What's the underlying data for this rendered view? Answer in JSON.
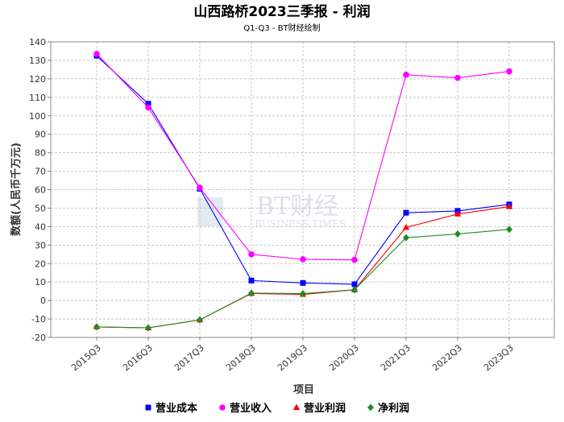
{
  "chart_data": {
    "type": "line",
    "title": "山西路桥2023三季报 - 利润",
    "subtitle": "Q1-Q3 - BT财经绘制",
    "xlabel": "项目",
    "ylabel": "数额(人民币千万元)",
    "ylim": [
      -20,
      140
    ],
    "ytick_step": 10,
    "grid": true,
    "legend_position": "bottom",
    "categories": [
      "2015Q3",
      "2016Q3",
      "2017Q3",
      "2018Q3",
      "2019Q3",
      "2020Q3",
      "2021Q3",
      "2022Q3",
      "2023Q3"
    ],
    "series": [
      {
        "name": "营业成本",
        "color": "#0000ff",
        "marker": "square",
        "values": [
          132.5,
          106.5,
          60.5,
          10.8,
          9.5,
          8.8,
          47.5,
          48.5,
          52.0
        ]
      },
      {
        "name": "营业收入",
        "color": "#ff00ff",
        "marker": "circle",
        "values": [
          133.5,
          104.5,
          61.0,
          25.0,
          22.3,
          22.0,
          122.2,
          120.5,
          124.0
        ]
      },
      {
        "name": "营业利润",
        "color": "#ff0000",
        "marker": "triangle",
        "values": [
          -14.3,
          -14.8,
          -10.5,
          3.8,
          3.3,
          5.8,
          39.5,
          46.8,
          50.8
        ]
      },
      {
        "name": "净利润",
        "color": "#228b22",
        "marker": "diamond",
        "values": [
          -14.3,
          -14.8,
          -10.5,
          4.0,
          3.7,
          5.8,
          34.0,
          36.0,
          38.5
        ]
      }
    ],
    "watermark": {
      "main": "BT财经",
      "sub": "BUSINESS TIMES"
    }
  }
}
